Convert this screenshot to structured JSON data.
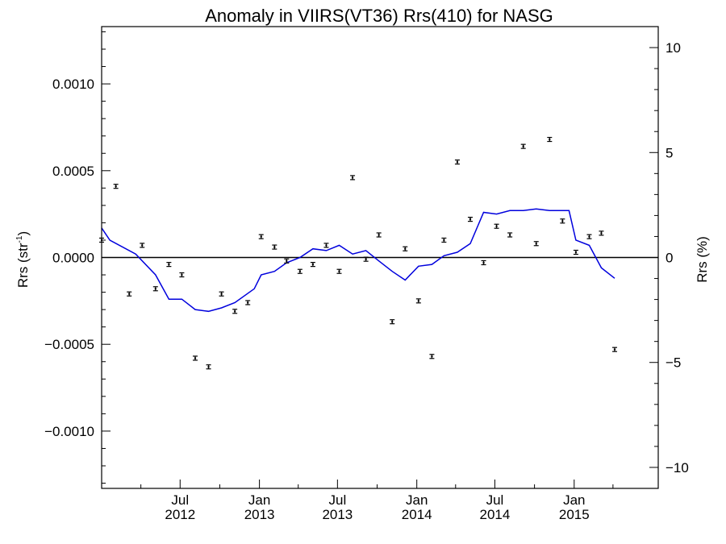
{
  "chart_data": {
    "type": "scatter",
    "title": "Anomaly in VIIRS(VT36) Rrs(410) for NASG",
    "ylabel": "Rrs (str",
    "ylabel_sup": "-1",
    "ylabel_close": ")",
    "y2label": "Rrs (%)",
    "ylim": [
      -0.00133,
      0.00133
    ],
    "y2lim": [
      -11.0,
      11.0
    ],
    "grid": false,
    "legend": "none",
    "colors": {
      "line": "#0000dd",
      "points": "#000000",
      "zero_line": "#000000"
    },
    "xlim": [
      "2012-01-01",
      "2015-07-15"
    ],
    "x_ticks": [
      {
        "date": "2012-07-01",
        "month": "Jul",
        "year": "2012"
      },
      {
        "date": "2013-01-01",
        "month": "Jan",
        "year": "2013"
      },
      {
        "date": "2013-07-01",
        "month": "Jul",
        "year": "2013"
      },
      {
        "date": "2014-01-01",
        "month": "Jan",
        "year": "2014"
      },
      {
        "date": "2014-07-01",
        "month": "Jul",
        "year": "2014"
      },
      {
        "date": "2015-01-01",
        "month": "Jan",
        "year": "2015"
      }
    ],
    "y_ticks": [
      {
        "value": 0.001,
        "label": "0.0010"
      },
      {
        "value": 0.0005,
        "label": "0.0005"
      },
      {
        "value": 0.0,
        "label": "0.0000"
      },
      {
        "value": -0.0005,
        "label": "−0.0005"
      },
      {
        "value": -0.001,
        "label": "−0.0010"
      }
    ],
    "y2_ticks": [
      {
        "value": 10,
        "label": "10"
      },
      {
        "value": 5,
        "label": "5"
      },
      {
        "value": 0,
        "label": "0"
      },
      {
        "value": -5,
        "label": "−5"
      },
      {
        "value": -10,
        "label": "−10"
      }
    ],
    "series": [
      {
        "type": "scatter",
        "points": [
          {
            "x": "2012-01-01",
            "y": 0.0001
          },
          {
            "x": "2012-02-03",
            "y": 0.00041
          },
          {
            "x": "2012-03-05",
            "y": -0.00021
          },
          {
            "x": "2012-04-04",
            "y": 7e-05
          },
          {
            "x": "2012-05-05",
            "y": -0.00018
          },
          {
            "x": "2012-06-05",
            "y": -4e-05
          },
          {
            "x": "2012-07-05",
            "y": -0.0001
          },
          {
            "x": "2012-08-05",
            "y": -0.00058
          },
          {
            "x": "2012-09-05",
            "y": -0.00063
          },
          {
            "x": "2012-10-05",
            "y": -0.00021
          },
          {
            "x": "2012-11-05",
            "y": -0.00031
          },
          {
            "x": "2012-12-05",
            "y": -0.00026
          },
          {
            "x": "2013-01-05",
            "y": 0.00012
          },
          {
            "x": "2013-02-05",
            "y": 6e-05
          },
          {
            "x": "2013-03-05",
            "y": -2e-05
          },
          {
            "x": "2013-04-05",
            "y": -8e-05
          },
          {
            "x": "2013-05-05",
            "y": -4e-05
          },
          {
            "x": "2013-06-05",
            "y": 7e-05
          },
          {
            "x": "2013-07-05",
            "y": -8e-05
          },
          {
            "x": "2013-08-05",
            "y": 0.00046
          },
          {
            "x": "2013-09-05",
            "y": -1e-05
          },
          {
            "x": "2013-10-05",
            "y": 0.00013
          },
          {
            "x": "2013-11-05",
            "y": -0.00037
          },
          {
            "x": "2013-12-05",
            "y": 5e-05
          },
          {
            "x": "2014-01-05",
            "y": -0.00025
          },
          {
            "x": "2014-02-05",
            "y": -0.00057
          },
          {
            "x": "2014-03-05",
            "y": 0.0001
          },
          {
            "x": "2014-04-05",
            "y": 0.00055
          },
          {
            "x": "2014-05-05",
            "y": 0.00022
          },
          {
            "x": "2014-06-05",
            "y": -3e-05
          },
          {
            "x": "2014-07-05",
            "y": 0.00018
          },
          {
            "x": "2014-08-05",
            "y": 0.00013
          },
          {
            "x": "2014-09-05",
            "y": 0.00064
          },
          {
            "x": "2014-10-05",
            "y": 8e-05
          },
          {
            "x": "2014-11-05",
            "y": 0.00068
          },
          {
            "x": "2014-12-05",
            "y": 0.00021
          },
          {
            "x": "2015-01-05",
            "y": 3e-05
          },
          {
            "x": "2015-02-05",
            "y": 0.00012
          },
          {
            "x": "2015-03-05",
            "y": 0.00014
          },
          {
            "x": "2015-04-05",
            "y": -0.00053
          }
        ]
      },
      {
        "type": "line",
        "points": [
          {
            "x": "2012-01-01",
            "y": 0.00017
          },
          {
            "x": "2012-01-20",
            "y": 0.0001
          },
          {
            "x": "2012-03-20",
            "y": 2e-05
          },
          {
            "x": "2012-05-05",
            "y": -0.0001
          },
          {
            "x": "2012-06-05",
            "y": -0.00024
          },
          {
            "x": "2012-07-05",
            "y": -0.00024
          },
          {
            "x": "2012-08-05",
            "y": -0.0003
          },
          {
            "x": "2012-09-05",
            "y": -0.00031
          },
          {
            "x": "2012-10-05",
            "y": -0.00029
          },
          {
            "x": "2012-11-05",
            "y": -0.00026
          },
          {
            "x": "2012-12-20",
            "y": -0.00018
          },
          {
            "x": "2013-01-05",
            "y": -0.0001
          },
          {
            "x": "2013-02-05",
            "y": -8e-05
          },
          {
            "x": "2013-03-05",
            "y": -3e-05
          },
          {
            "x": "2013-04-05",
            "y": 0.0
          },
          {
            "x": "2013-05-05",
            "y": 5e-05
          },
          {
            "x": "2013-06-05",
            "y": 4e-05
          },
          {
            "x": "2013-07-05",
            "y": 7e-05
          },
          {
            "x": "2013-08-05",
            "y": 2e-05
          },
          {
            "x": "2013-09-05",
            "y": 4e-05
          },
          {
            "x": "2013-10-05",
            "y": -2e-05
          },
          {
            "x": "2013-11-05",
            "y": -8e-05
          },
          {
            "x": "2013-12-05",
            "y": -0.00013
          },
          {
            "x": "2014-01-05",
            "y": -5e-05
          },
          {
            "x": "2014-02-05",
            "y": -4e-05
          },
          {
            "x": "2014-03-05",
            "y": 1e-05
          },
          {
            "x": "2014-04-05",
            "y": 3e-05
          },
          {
            "x": "2014-05-05",
            "y": 8e-05
          },
          {
            "x": "2014-06-05",
            "y": 0.00026
          },
          {
            "x": "2014-07-05",
            "y": 0.00025
          },
          {
            "x": "2014-08-05",
            "y": 0.00027
          },
          {
            "x": "2014-09-05",
            "y": 0.00027
          },
          {
            "x": "2014-10-05",
            "y": 0.00028
          },
          {
            "x": "2014-11-05",
            "y": 0.00027
          },
          {
            "x": "2014-12-20",
            "y": 0.00027
          },
          {
            "x": "2015-01-05",
            "y": 0.0001
          },
          {
            "x": "2015-02-05",
            "y": 7e-05
          },
          {
            "x": "2015-03-05",
            "y": -6e-05
          },
          {
            "x": "2015-04-05",
            "y": -0.00012
          }
        ]
      }
    ]
  }
}
